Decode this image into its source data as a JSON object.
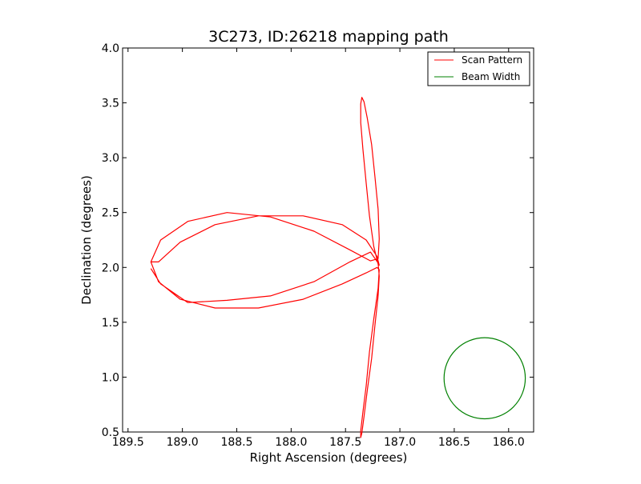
{
  "chart_data": {
    "type": "line",
    "title": "3C273, ID:26218 mapping path",
    "xlabel": "Right Ascension (degrees)",
    "ylabel": "Declination (degrees)",
    "xlim": [
      189.55,
      185.77
    ],
    "ylim": [
      0.5,
      4.0
    ],
    "x_inverted": true,
    "xticks": [
      "189.5",
      "189.0",
      "188.5",
      "188.0",
      "187.5",
      "187.0",
      "186.5",
      "186.0"
    ],
    "yticks": [
      "0.5",
      "1.0",
      "1.5",
      "2.0",
      "2.5",
      "3.0",
      "3.5",
      "4.0"
    ],
    "grid": false,
    "legend_position": "top-right",
    "series": [
      {
        "name": "Scan Pattern",
        "color": "#ff0000",
        "x": [
          189.29,
          189.2,
          188.95,
          188.59,
          188.19,
          187.79,
          187.46,
          187.27,
          187.2,
          187.19,
          187.2,
          187.23,
          187.26,
          187.3,
          187.33,
          187.35,
          187.36,
          187.36,
          187.34,
          187.31,
          187.28,
          187.24,
          187.2,
          187.19,
          187.21,
          187.31,
          187.53,
          187.89,
          188.3,
          188.7,
          189.02,
          189.22,
          189.29,
          189.22,
          189.02,
          188.7,
          188.3,
          187.89,
          187.53,
          187.31,
          187.21,
          187.19,
          187.2,
          187.24,
          187.28,
          187.31,
          187.34,
          187.36,
          187.36,
          187.35,
          187.33,
          187.3,
          187.26,
          187.23,
          187.2,
          187.19,
          187.2,
          187.27,
          187.46,
          187.79,
          188.19,
          188.59,
          188.95,
          189.2,
          189.29
        ],
        "y": [
          2.05,
          2.25,
          2.42,
          2.5,
          2.46,
          2.33,
          2.16,
          2.06,
          2.08,
          2.26,
          2.53,
          2.83,
          3.12,
          3.36,
          3.51,
          3.55,
          3.49,
          3.32,
          3.08,
          2.77,
          2.47,
          2.19,
          2.03,
          2.02,
          2.1,
          2.25,
          2.39,
          2.47,
          2.47,
          2.39,
          2.23,
          2.05,
          2.05,
          1.87,
          1.71,
          1.63,
          1.63,
          1.71,
          1.85,
          1.95,
          2.0,
          1.98,
          1.81,
          1.53,
          1.23,
          0.92,
          0.68,
          0.51,
          0.45,
          0.49,
          0.64,
          0.88,
          1.17,
          1.47,
          1.74,
          1.92,
          2.04,
          2.14,
          2.05,
          1.87,
          1.74,
          1.7,
          1.68,
          1.85,
          1.99
        ]
      },
      {
        "name": "Beam Width",
        "color": "#008000",
        "shape": "circle",
        "center": [
          186.22,
          0.99
        ],
        "radius_dec": 0.37
      }
    ]
  }
}
